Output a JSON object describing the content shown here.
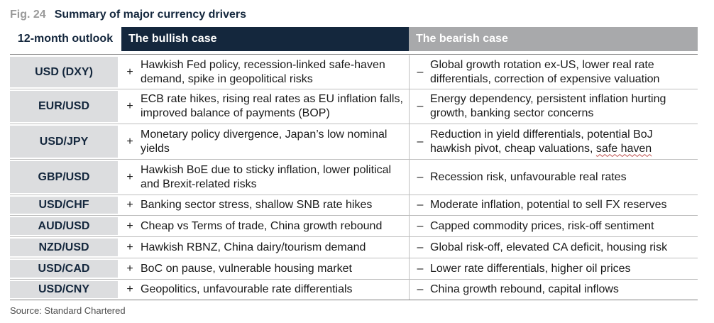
{
  "figure": {
    "number": "Fig. 24",
    "title": "Summary of major currency drivers"
  },
  "header": {
    "outlook": "12-month outlook",
    "bullish": "The bullish case",
    "bearish": "The bearish case"
  },
  "rows": [
    {
      "pair": "USD (DXY)",
      "bull_sign": "+",
      "bull": "Hawkish Fed policy, recession-linked safe-haven demand, spike in geopolitical risks",
      "bear_sign": "–",
      "bear": "Global growth rotation ex-US, lower real rate differentials, correction of expensive valuation"
    },
    {
      "pair": "EUR/USD",
      "bull_sign": "+",
      "bull": "ECB rate hikes, rising real rates as EU inflation falls, improved balance of payments (BOP)",
      "bear_sign": "–",
      "bear": "Energy dependency, persistent inflation hurting growth, banking sector concerns"
    },
    {
      "pair": "USD/JPY",
      "bull_sign": "+",
      "bull": "Monetary policy divergence, Japan’s low nominal yields",
      "bear_sign": "–",
      "bear_prefix": "Reduction in yield differentials, potential BoJ hawkish pivot, cheap valuations, ",
      "bear_marked": "safe haven"
    },
    {
      "pair": "GBP/USD",
      "bull_sign": "+",
      "bull": "Hawkish BoE due to sticky inflation, lower political and Brexit-related risks",
      "bear_sign": "–",
      "bear": "Recession risk, unfavourable real rates"
    },
    {
      "pair": "USD/CHF",
      "bull_sign": "+",
      "bull": "Banking sector stress, shallow SNB rate hikes",
      "bear_sign": "–",
      "bear": "Moderate inflation, potential to sell FX reserves"
    },
    {
      "pair": "AUD/USD",
      "bull_sign": "+",
      "bull": "Cheap vs Terms of trade, China growth rebound",
      "bear_sign": "–",
      "bear": "Capped commodity prices, risk-off sentiment"
    },
    {
      "pair": "NZD/USD",
      "bull_sign": "+",
      "bull": "Hawkish RBNZ, China dairy/tourism demand",
      "bear_sign": "–",
      "bear": "Global risk-off, elevated CA deficit, housing risk"
    },
    {
      "pair": "USD/CAD",
      "bull_sign": "+",
      "bull": "BoC on pause, vulnerable housing market",
      "bear_sign": "–",
      "bear": "Lower rate differentials, higher oil prices"
    },
    {
      "pair": "USD/CNY",
      "bull_sign": "+",
      "bull": "Geopolitics, unfavourable rate differentials",
      "bear_sign": "–",
      "bear": "China growth rebound, capital inflows"
    }
  ],
  "source": "Source: Standard Chartered",
  "colors": {
    "navy": "#14273d",
    "grey_header": "#a8a9ab",
    "pair_bg": "#dcdddf",
    "spellcheck": "#c0504d"
  }
}
